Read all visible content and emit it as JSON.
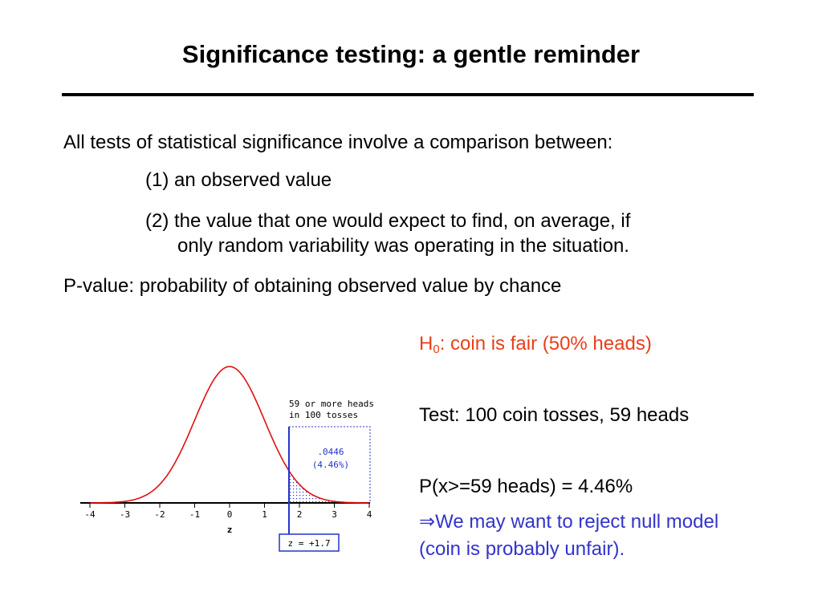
{
  "slide": {
    "title": "Significance testing: a gentle reminder",
    "intro": "All tests of statistical significance involve a comparison between:",
    "item1": "(1) an observed value",
    "item2_line1": "(2) the value that one would expect to find, on average, if",
    "item2_line2": "only random variability was operating in the situation.",
    "pvalue_def": "P-value: probability of obtaining observed value by chance"
  },
  "right": {
    "h0_prefix": "H",
    "h0_sub": "0",
    "h0_text": ": coin is fair (50% heads)",
    "test": "Test: 100 coin tosses, 59 heads",
    "prob": "P(x>=59 heads) = 4.46%",
    "implies_symbol": "⇒",
    "conclusion_line1": "We may want to reject null model",
    "conclusion_line2": "(coin is probably unfair)."
  },
  "colors": {
    "h0": "#e8401a",
    "conclusion": "#3333cc",
    "curve": "#e01010",
    "annotation": "#2233cc"
  },
  "chart_data": {
    "type": "line",
    "function": "standard normal density",
    "x_ticks": [
      "-4",
      "-3",
      "-2",
      "-1",
      "0",
      "1",
      "2",
      "3",
      "4"
    ],
    "xlim": [
      -4,
      4
    ],
    "xlabel": "z",
    "shaded_from_z": 1.7,
    "annotation_title_line1": "59 or more heads",
    "annotation_title_line2": "in 100 tosses",
    "area_value": ".0446",
    "area_percent": "(4.46%)",
    "z_label": "z = +1.7"
  }
}
